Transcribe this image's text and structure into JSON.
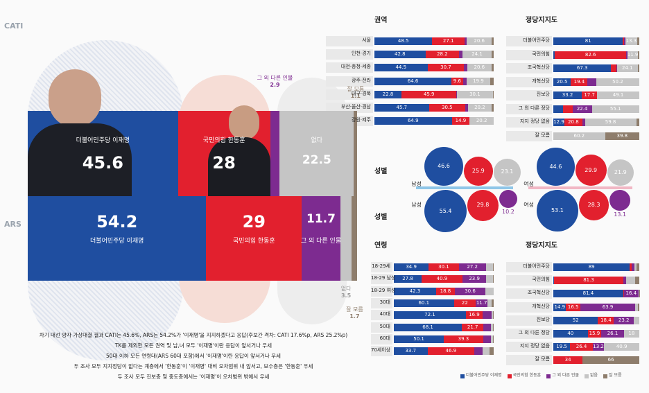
{
  "legend": [
    {
      "name": "더불어민주당 이재명",
      "color": "#1f4ea0"
    },
    {
      "name": "국민의힘 한동훈",
      "color": "#e2202e"
    },
    {
      "name": "그 외 다른 인물",
      "color": "#7d2b90"
    },
    {
      "name": "없음",
      "color": "#c5c5c5"
    },
    {
      "name": "잘 모름",
      "color": "#8e7d6c"
    }
  ],
  "notes": [
    "차기 대선 양자 가상대결 결과 CATI는 45.6%, ARS는 54.2%가 '이재명'을 지지하겠다고 응답(후보간 격차: CATI 17.6%p, ARS 25.2%p)",
    "TK를 제외한 모든 권역 및 남,녀 모두 '이재명'이란 응답이 앞서거나 우세",
    "50대 이하 모든 연령대(ARS 60대 포함)에서 '이재명'이란 응답이 앞서거나 우세",
    "두 조사 모두 지지정당이 없다는 계층에서 '한동훈'이 '이재명' 대비 오차범위 내 앞서고, 보수층은 '한동훈' 우세",
    "두 조사 모두 진보층 및 중도층에서는 '이재명'이 오차범위 밖에서 우세"
  ],
  "chart_data": [
    {
      "type": "main_bar",
      "categories": [
        "CATI",
        "ARS"
      ],
      "xlim": [
        0,
        100
      ],
      "series": [
        {
          "name": "더불어민주당 이재명",
          "color": "#1f4ea0",
          "values": [
            45.6,
            54.2
          ]
        },
        {
          "name": "국민의힘 한동훈",
          "color": "#e2202e",
          "values": [
            28.0,
            29.0
          ]
        },
        {
          "name": "그 외 다른 인물",
          "color": "#7d2b90",
          "values": [
            2.9,
            11.7
          ]
        },
        {
          "name": "없다",
          "color": "#c5c5c5",
          "values": [
            22.5,
            3.5
          ]
        },
        {
          "name": "잘 모름",
          "color": "#8e7d6c",
          "values": [
            1.1,
            1.7
          ]
        }
      ]
    },
    {
      "type": "stacked_bar",
      "title": "권역",
      "xlim": [
        0,
        100
      ],
      "categories": [
        "서울",
        "인천·경기",
        "대전·충청·세종",
        "광주·전라",
        "대구·경북",
        "부산·울산·경남",
        "강원·제주"
      ],
      "values": [
        [
          48.5,
          27.1,
          2.0,
          20.6,
          1.8
        ],
        [
          42.8,
          28.2,
          3.0,
          24.1,
          1.9
        ],
        [
          44.5,
          30.7,
          2.5,
          20.6,
          1.7
        ],
        [
          64.6,
          9.6,
          3.0,
          19.9,
          2.9
        ],
        [
          22.8,
          45.9,
          0.5,
          30.1,
          0.7
        ],
        [
          45.7,
          30.5,
          2.0,
          20.2,
          1.6
        ],
        [
          64.9,
          14.9,
          0,
          20.2,
          0
        ]
      ]
    },
    {
      "type": "stacked_bar",
      "title": "정당지지도",
      "xlim": [
        0,
        100
      ],
      "categories": [
        "더불어민주당",
        "국민의힘",
        "조국혁신당",
        "개혁신당",
        "진보당",
        "그 외 다른 정당",
        "지지 정당 없음",
        "잘 모름"
      ],
      "values": [
        [
          81.0,
          1.5,
          1.5,
          13.3,
          2.7
        ],
        [
          2.0,
          82.6,
          1.5,
          11.9,
          2.0
        ],
        [
          67.3,
          6.3,
          0.5,
          24.1,
          1.8
        ],
        [
          20.5,
          19.4,
          9.9,
          50.2,
          0
        ],
        [
          33.2,
          17.7,
          0,
          49.1,
          0
        ],
        [
          11.2,
          11.2,
          22.4,
          55.1,
          0
        ],
        [
          12.9,
          20.8,
          3.0,
          59.8,
          3.5
        ],
        [
          0,
          0,
          0,
          60.2,
          39.8
        ]
      ]
    },
    {
      "type": "bubble",
      "title": "성별",
      "position": "top",
      "categories": [
        "남성",
        "여성"
      ],
      "series": [
        {
          "color": "#1f4ea0",
          "values": [
            46.6,
            44.6
          ]
        },
        {
          "color": "#e2202e",
          "values": [
            25.9,
            29.9
          ]
        },
        {
          "color": "#c5c5c5",
          "values": [
            23.1,
            21.9
          ]
        }
      ]
    },
    {
      "type": "bubble",
      "title": "성별",
      "position": "bottom",
      "categories": [
        "남성",
        "여성"
      ],
      "series": [
        {
          "color": "#1f4ea0",
          "values": [
            55.4,
            53.1
          ]
        },
        {
          "color": "#e2202e",
          "values": [
            29.8,
            28.3
          ]
        },
        {
          "color": "#7d2b90",
          "values": [
            10.2,
            13.1
          ]
        }
      ]
    },
    {
      "type": "stacked_bar",
      "title": "연령",
      "xlim": [
        0,
        100
      ],
      "categories": [
        "18-29세",
        "18-29 남성",
        "18-29 여성",
        "30대",
        "40대",
        "50대",
        "60대",
        "70세이상"
      ],
      "values": [
        [
          34.9,
          30.1,
          27.2,
          7.0,
          0.8
        ],
        [
          27.8,
          40.9,
          23.9,
          6.8,
          0.6
        ],
        [
          42.3,
          18.8,
          30.6,
          8.3,
          0
        ],
        [
          60.1,
          22.0,
          11.7,
          4.0,
          2.2
        ],
        [
          72.1,
          16.9,
          9.0,
          1.5,
          0.5
        ],
        [
          68.1,
          21.7,
          7.4,
          1.8,
          1.0
        ],
        [
          50.1,
          39.3,
          8.0,
          1.8,
          0.8
        ],
        [
          33.7,
          46.9,
          8.3,
          6.8,
          4.3
        ]
      ]
    },
    {
      "type": "stacked_bar",
      "title": "정당지지도",
      "xlim": [
        0,
        100
      ],
      "categories": [
        "더불어민주당",
        "국민의힘",
        "조국혁신당",
        "개혁신당",
        "진보당",
        "그 외 다른 정당",
        "지지 정당 없음",
        "잘 모름"
      ],
      "values": [
        [
          89.0,
          2.0,
          3.0,
          3.0,
          3.0
        ],
        [
          0.5,
          81.3,
          3.0,
          10.7,
          4.5
        ],
        [
          81.4,
          1.0,
          16.4,
          1.0,
          0.2
        ],
        [
          14.9,
          16.5,
          63.9,
          3.0,
          1.7
        ],
        [
          52.0,
          18.4,
          23.2,
          6.3,
          0
        ],
        [
          40.0,
          15.9,
          26.1,
          18.0,
          0
        ],
        [
          19.5,
          26.4,
          13.2,
          40.9,
          0
        ],
        [
          0,
          34.0,
          0,
          0,
          66.0
        ]
      ]
    }
  ]
}
